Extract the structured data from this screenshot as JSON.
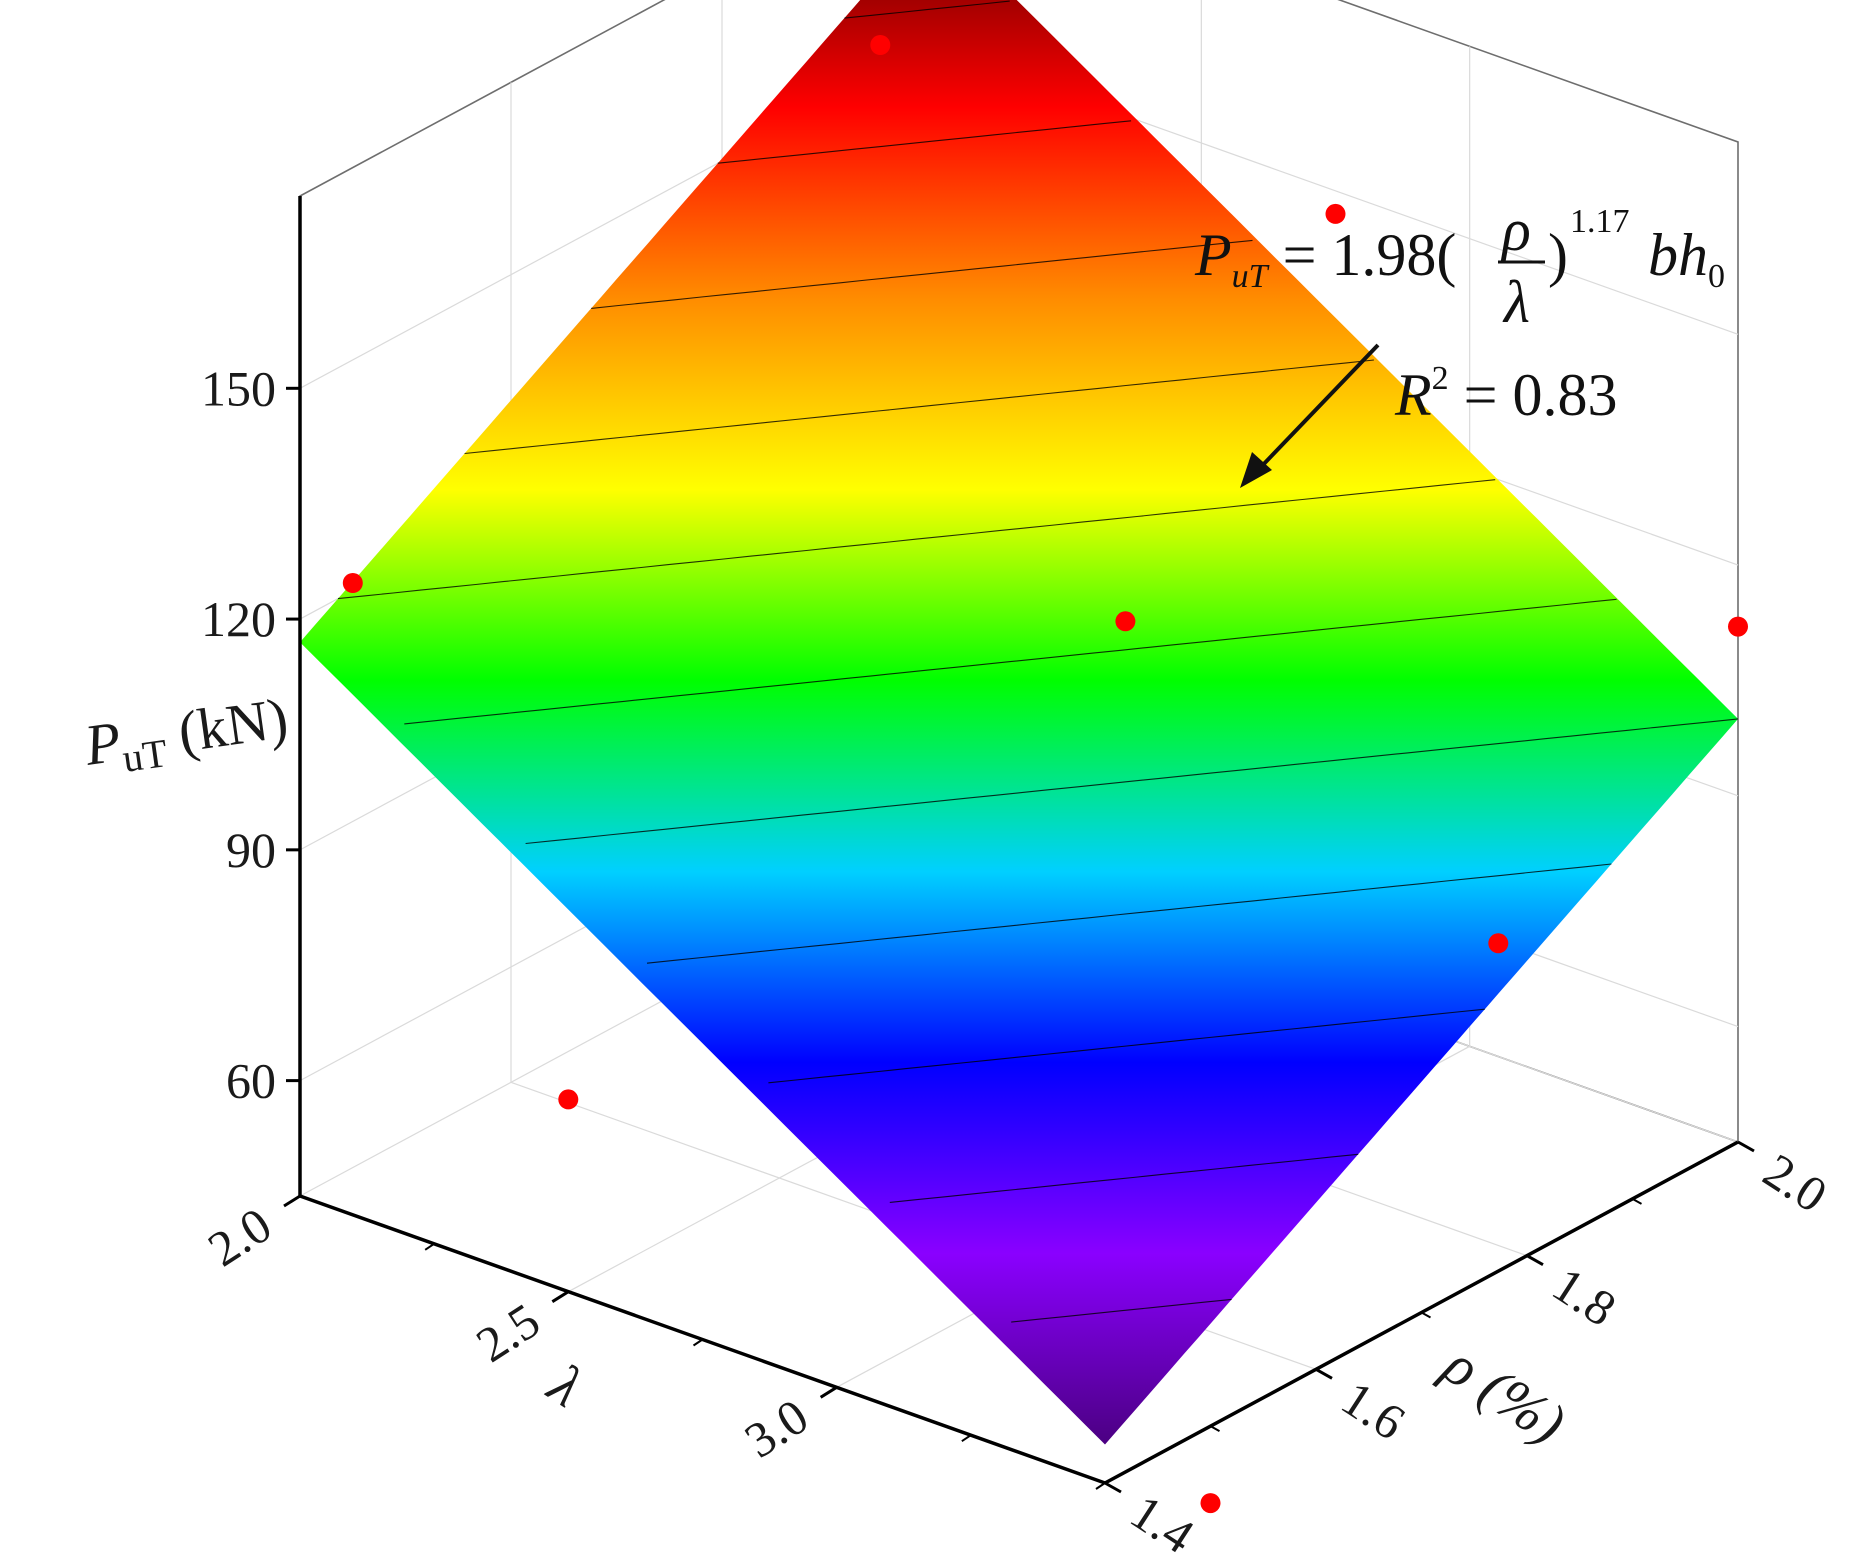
{
  "chart_data": {
    "type": "surface3d",
    "x_axis": {
      "label": "λ",
      "ticks": [
        "2.0",
        "2.5",
        "3.0"
      ],
      "range": [
        2.0,
        3.5
      ]
    },
    "y_axis": {
      "label": "ρ (%)",
      "ticks": [
        "1.4",
        "1.6",
        "1.8",
        "2.0"
      ],
      "range": [
        1.4,
        2.0
      ]
    },
    "z_axis": {
      "label_main": "P",
      "label_sub": "uT",
      "label_unit": " (kN)",
      "ticks": [
        "60",
        "90",
        "120",
        "150"
      ],
      "range": [
        45,
        175
      ]
    },
    "surface": {
      "model": "P = 1.98 (ρ/λ)^1.17 · b · h0",
      "corners": [
        {
          "lambda": 2.0,
          "rho": 1.4,
          "P": 117
        },
        {
          "lambda": 2.0,
          "rho": 2.0,
          "P": 167
        },
        {
          "lambda": 3.5,
          "rho": 2.0,
          "P": 100
        },
        {
          "lambda": 3.5,
          "rho": 1.4,
          "P": 50
        }
      ],
      "colormap": [
        "#4b0082",
        "#8a00ff",
        "#0000ff",
        "#00d0ff",
        "#00ff00",
        "#ffff00",
        "#ff8c00",
        "#ff0000",
        "#5c0000"
      ]
    },
    "points": [
      {
        "lambda": 2.0,
        "rho": 1.45,
        "P": 121
      },
      {
        "lambda": 2.0,
        "rho": 1.95,
        "P": 154
      },
      {
        "lambda": 2.75,
        "rho": 2.0,
        "P": 147
      },
      {
        "lambda": 3.5,
        "rho": 2.0,
        "P": 112
      },
      {
        "lambda": 2.85,
        "rho": 1.75,
        "P": 115
      },
      {
        "lambda": 2.5,
        "rho": 1.4,
        "P": 70
      },
      {
        "lambda": 3.25,
        "rho": 1.9,
        "P": 72
      },
      {
        "lambda": 3.5,
        "rho": 1.5,
        "P": 35
      }
    ],
    "point_color": "#ff0000",
    "annotation": {
      "lhs_main": "P",
      "lhs_sub": "uT",
      "eq_coef": " = 1.98(",
      "frac_num": "ρ",
      "frac_den": "λ",
      "exponent": "1.17",
      "tail": "bh",
      "tail_sub": "0",
      "r2_main": "R",
      "r2_exp": "2",
      "r2_value": " = 0.83"
    }
  }
}
